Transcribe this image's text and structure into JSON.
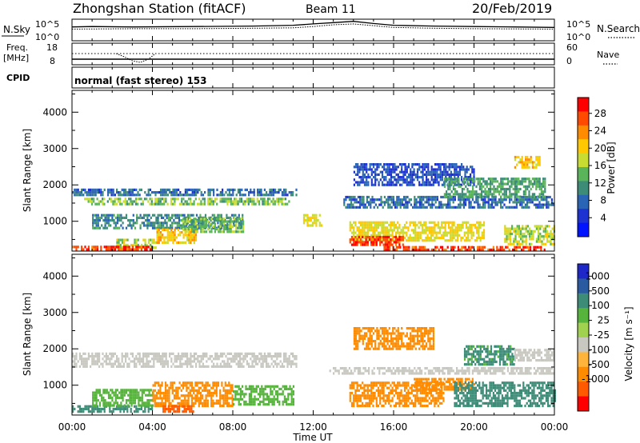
{
  "header": {
    "station": "Zhongshan Station (fitACF)",
    "beam": "Beam 11",
    "date": "20/Feb/2019"
  },
  "strip_labels": {
    "nsky": "N.Sky",
    "nsky_ticks": [
      "10^5",
      "10^0"
    ],
    "nsearch": "N.Search",
    "nsearch_ticks": [
      "10^5",
      "10^0"
    ],
    "freq": "Freq.",
    "freq_unit": "[MHz]",
    "freq_ticks": [
      "18",
      "8"
    ],
    "nave": "Nave",
    "nave_ticks": [
      "60",
      "0"
    ],
    "cpid": "CPID",
    "cpid_value": "normal (fast stereo) 153"
  },
  "axes": {
    "ylabel": "Slant Range [km]",
    "yticks": [
      "4000",
      "3000",
      "2000",
      "1000"
    ],
    "xlabel": "Time UT",
    "xticks": [
      "00:00",
      "04:00",
      "08:00",
      "12:00",
      "16:00",
      "20:00",
      "00:00"
    ]
  },
  "colorbars": {
    "power": {
      "label": "Power [dB]",
      "ticks": [
        "28",
        "24",
        "20",
        "16",
        "12",
        "8",
        "4"
      ],
      "colors": [
        "#ff0000",
        "#ff4a00",
        "#ff8c00",
        "#ffc800",
        "#c8dc32",
        "#5ab45a",
        "#3c8c78",
        "#2a64b4",
        "#1e32d2",
        "#0014ff"
      ]
    },
    "velocity": {
      "label": "Velocity [m s⁻¹]",
      "ticks": [
        "1000",
        "500",
        "100",
        "25",
        "-25",
        "-100",
        "-500",
        "-1000"
      ],
      "colors": [
        "#1e28c8",
        "#2a5aa0",
        "#3c8c78",
        "#56b43c",
        "#a0d250",
        "#c8c8c0",
        "#ffb43c",
        "#ff8c00",
        "#ff5a00",
        "#ff0000"
      ]
    }
  },
  "chart_data": [
    {
      "type": "heatmap",
      "name": "Power",
      "x_unit": "hours UT",
      "xlim": [
        0,
        24
      ],
      "ylim": [
        180,
        4600
      ],
      "ylabel": "Slant Range [km]",
      "xlabel": "Time UT",
      "colorbar_range": [
        0,
        30
      ],
      "patches": [
        {
          "t0": 0.0,
          "t1": 11.2,
          "r0": 1700,
          "r1": 1900,
          "v": 8
        },
        {
          "t0": 0.6,
          "t1": 10.8,
          "r0": 1500,
          "r1": 1650,
          "v": 14
        },
        {
          "t0": 1.0,
          "t1": 8.5,
          "r0": 800,
          "r1": 1200,
          "v": 10
        },
        {
          "t0": 2.2,
          "t1": 4.2,
          "r0": 260,
          "r1": 520,
          "v": 16
        },
        {
          "t0": 0.0,
          "t1": 4.0,
          "r0": 250,
          "r1": 330,
          "v": 26
        },
        {
          "t0": 4.2,
          "t1": 6.2,
          "r0": 380,
          "r1": 800,
          "v": 20
        },
        {
          "t0": 5.5,
          "t1": 8.5,
          "r0": 700,
          "r1": 1100,
          "v": 14
        },
        {
          "t0": 11.5,
          "t1": 12.4,
          "r0": 900,
          "r1": 1200,
          "v": 18
        },
        {
          "t0": 13.5,
          "t1": 24.0,
          "r0": 1400,
          "r1": 1700,
          "v": 8
        },
        {
          "t0": 13.8,
          "t1": 20.5,
          "r0": 500,
          "r1": 1000,
          "v": 18
        },
        {
          "t0": 13.8,
          "t1": 16.5,
          "r0": 320,
          "r1": 600,
          "v": 26
        },
        {
          "t0": 15.5,
          "t1": 23.5,
          "r0": 220,
          "r1": 320,
          "v": 26
        },
        {
          "t0": 14.0,
          "t1": 20.0,
          "r0": 2000,
          "r1": 2600,
          "v": 6
        },
        {
          "t0": 18.5,
          "t1": 23.5,
          "r0": 1700,
          "r1": 2200,
          "v": 12
        },
        {
          "t0": 21.5,
          "t1": 24.0,
          "r0": 400,
          "r1": 900,
          "v": 16
        },
        {
          "t0": 22.0,
          "t1": 23.3,
          "r0": 2500,
          "r1": 2800,
          "v": 20
        }
      ]
    },
    {
      "type": "heatmap",
      "name": "Velocity",
      "x_unit": "hours UT",
      "xlim": [
        0,
        24
      ],
      "ylim": [
        180,
        4600
      ],
      "ylabel": "Slant Range [km]",
      "xlabel": "Time UT",
      "colorbar_range": [
        -1000,
        1000
      ],
      "patches": [
        {
          "t0": 0.0,
          "t1": 11.2,
          "r0": 1500,
          "r1": 1900,
          "v": 0
        },
        {
          "t0": 0.0,
          "t1": 4.0,
          "r0": 250,
          "r1": 450,
          "v": 150
        },
        {
          "t0": 1.0,
          "t1": 4.0,
          "r0": 450,
          "r1": 900,
          "v": 60
        },
        {
          "t0": 4.0,
          "t1": 8.0,
          "r0": 400,
          "r1": 1100,
          "v": -300
        },
        {
          "t0": 4.5,
          "t1": 6.0,
          "r0": 250,
          "r1": 450,
          "v": -700
        },
        {
          "t0": 8.0,
          "t1": 11.0,
          "r0": 500,
          "r1": 1000,
          "v": 50
        },
        {
          "t0": 12.8,
          "t1": 24.0,
          "r0": 1300,
          "r1": 1500,
          "v": 0
        },
        {
          "t0": 13.8,
          "t1": 18.5,
          "r0": 400,
          "r1": 1100,
          "v": -300
        },
        {
          "t0": 17.0,
          "t1": 20.0,
          "r0": 900,
          "r1": 1200,
          "v": -150
        },
        {
          "t0": 19.0,
          "t1": 24.0,
          "r0": 400,
          "r1": 1100,
          "v": 250
        },
        {
          "t0": 19.5,
          "t1": 22.0,
          "r0": 1600,
          "r1": 2100,
          "v": 120
        },
        {
          "t0": 22.0,
          "t1": 24.0,
          "r0": 1700,
          "r1": 2000,
          "v": 0
        },
        {
          "t0": 14.0,
          "t1": 18.0,
          "r0": 2000,
          "r1": 2600,
          "v": -150
        }
      ]
    }
  ]
}
